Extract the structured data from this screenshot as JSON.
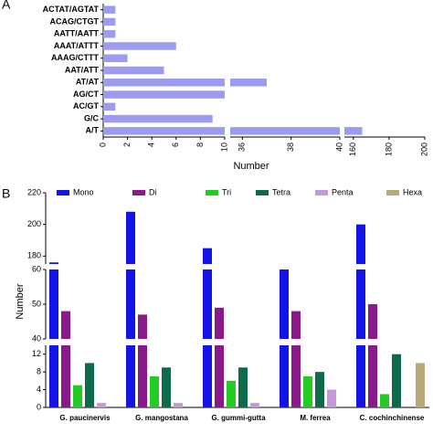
{
  "chart_data": [
    {
      "type": "hbar",
      "panel": "A",
      "xlabel": "Number",
      "categories": [
        "ACTAT/AGTAT",
        "ACAG/CTGT",
        "AATT/AATT",
        "AAAT/ATTT",
        "AAAG/CTTT",
        "AAT/ATT",
        "AT/AT",
        "AG/CT",
        "AC/GT",
        "G/C",
        "A/T"
      ],
      "values": [
        1,
        1,
        1,
        6,
        2,
        5,
        37,
        10,
        1,
        9,
        165
      ],
      "color": "#9b9cf0",
      "x_segments": [
        [
          0,
          10
        ],
        [
          35.5,
          40
        ],
        [
          155,
          200
        ]
      ],
      "xticks": [
        0,
        2,
        4,
        6,
        8,
        10,
        36,
        38,
        40,
        160,
        180,
        200
      ]
    },
    {
      "type": "grouped-bar",
      "panel": "B",
      "ylabel": "Number",
      "categories": [
        "G. paucinervis",
        "G. mangostana",
        "G. gummi-gutta",
        "M. ferrea",
        "C. cochinchinense"
      ],
      "series": [
        {
          "name": "Mono",
          "color": "#1414e6",
          "values": [
            176,
            208,
            185,
            60,
            200
          ]
        },
        {
          "name": "Di",
          "color": "#8a1a8a",
          "values": [
            48,
            47,
            49,
            48,
            50
          ]
        },
        {
          "name": "Tri",
          "color": "#22cc22",
          "values": [
            5,
            7,
            6,
            7,
            3
          ]
        },
        {
          "name": "Tetra",
          "color": "#0e6b4a",
          "values": [
            10,
            9,
            9,
            8,
            12
          ]
        },
        {
          "name": "Penta",
          "color": "#c39ad6",
          "values": [
            1,
            1,
            1,
            4,
            0
          ]
        },
        {
          "name": "Hexa",
          "color": "#b8a87a",
          "values": [
            0,
            0,
            0,
            0,
            10
          ]
        }
      ],
      "y_segments": [
        [
          0,
          14
        ],
        [
          40,
          60
        ],
        [
          175,
          220
        ]
      ],
      "yticks": [
        0,
        4,
        8,
        12,
        40,
        50,
        60,
        180,
        200,
        220
      ]
    }
  ]
}
